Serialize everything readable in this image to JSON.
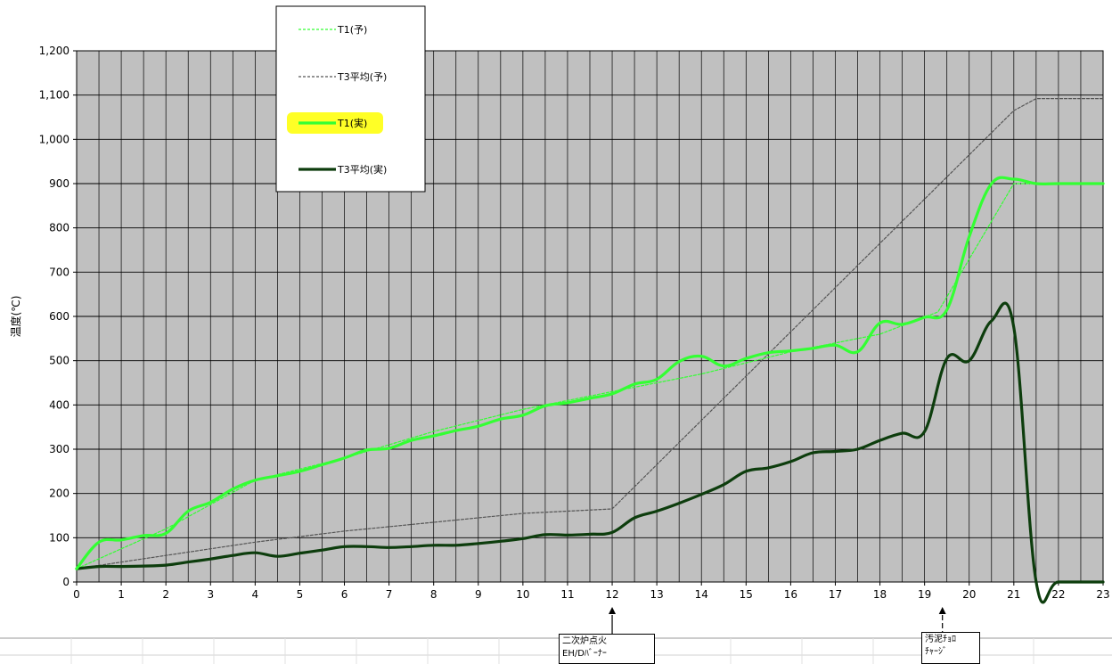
{
  "chart_data": {
    "type": "line",
    "title": "",
    "xlabel": "",
    "ylabel": "温度(℃)",
    "xlim": [
      0,
      23
    ],
    "ylim": [
      0,
      1200
    ],
    "x_ticks": [
      "0",
      "1",
      "2",
      "3",
      "4",
      "5",
      "6",
      "7",
      "8",
      "9",
      "10",
      "11",
      "12",
      "13",
      "14",
      "15",
      "16",
      "17",
      "18",
      "19",
      "20",
      "21",
      "22",
      "23"
    ],
    "y_ticks": [
      "0",
      "100",
      "200",
      "300",
      "400",
      "500",
      "600",
      "700",
      "800",
      "900",
      "1,000",
      "1,100",
      "1,200"
    ],
    "grid": true,
    "background": "#c0c0c0",
    "legend_position": "top-left",
    "series": [
      {
        "name": "T1(予)",
        "color": "#33ff33",
        "style": "dashed-thin",
        "points": [
          [
            0,
            30
          ],
          [
            2,
            120
          ],
          [
            4,
            230
          ],
          [
            6,
            280
          ],
          [
            8,
            340
          ],
          [
            10,
            390
          ],
          [
            12,
            430
          ],
          [
            14,
            470
          ],
          [
            16,
            520
          ],
          [
            18,
            560
          ],
          [
            19.3,
            610
          ],
          [
            21,
            900
          ],
          [
            23,
            900
          ]
        ]
      },
      {
        "name": "T3平均(予)",
        "color": "#555555",
        "style": "dashed-thin",
        "points": [
          [
            0,
            30
          ],
          [
            2,
            60
          ],
          [
            4,
            90
          ],
          [
            6,
            115
          ],
          [
            8,
            135
          ],
          [
            10,
            155
          ],
          [
            12,
            165
          ],
          [
            21,
            1065
          ],
          [
            21.5,
            1092
          ],
          [
            23,
            1092
          ]
        ]
      },
      {
        "name": "T1(実)",
        "color": "#33ff33",
        "style": "solid-thick",
        "highlight": "#ffff00",
        "points": [
          [
            0,
            30
          ],
          [
            0.5,
            90
          ],
          [
            1,
            95
          ],
          [
            1.5,
            105
          ],
          [
            2,
            110
          ],
          [
            2.5,
            160
          ],
          [
            3,
            180
          ],
          [
            3.5,
            210
          ],
          [
            4,
            230
          ],
          [
            4.5,
            240
          ],
          [
            5,
            250
          ],
          [
            5.5,
            265
          ],
          [
            6,
            280
          ],
          [
            6.5,
            298
          ],
          [
            7,
            302
          ],
          [
            7.5,
            320
          ],
          [
            8,
            330
          ],
          [
            8.5,
            342
          ],
          [
            9,
            352
          ],
          [
            9.5,
            368
          ],
          [
            10,
            377
          ],
          [
            10.5,
            398
          ],
          [
            11,
            405
          ],
          [
            11.5,
            415
          ],
          [
            12,
            425
          ],
          [
            12.5,
            447
          ],
          [
            13,
            458
          ],
          [
            13.5,
            498
          ],
          [
            14,
            510
          ],
          [
            14.5,
            488
          ],
          [
            15,
            505
          ],
          [
            15.5,
            518
          ],
          [
            16,
            522
          ],
          [
            16.5,
            528
          ],
          [
            17,
            535
          ],
          [
            17.5,
            520
          ],
          [
            18,
            585
          ],
          [
            18.5,
            582
          ],
          [
            19,
            598
          ],
          [
            19.5,
            615
          ],
          [
            20,
            780
          ],
          [
            20.5,
            900
          ],
          [
            21,
            910
          ],
          [
            21.5,
            900
          ],
          [
            22,
            900
          ],
          [
            23,
            900
          ]
        ]
      },
      {
        "name": "T3平均(実)",
        "color": "#0d3d0d",
        "style": "solid-thick",
        "points": [
          [
            0,
            30
          ],
          [
            0.5,
            35
          ],
          [
            1,
            35
          ],
          [
            1.5,
            36
          ],
          [
            2,
            38
          ],
          [
            2.5,
            45
          ],
          [
            3,
            52
          ],
          [
            3.5,
            60
          ],
          [
            4,
            66
          ],
          [
            4.5,
            58
          ],
          [
            5,
            65
          ],
          [
            5.5,
            72
          ],
          [
            6,
            80
          ],
          [
            6.5,
            80
          ],
          [
            7,
            78
          ],
          [
            7.5,
            80
          ],
          [
            8,
            83
          ],
          [
            8.5,
            83
          ],
          [
            9,
            87
          ],
          [
            9.5,
            92
          ],
          [
            10,
            98
          ],
          [
            10.5,
            107
          ],
          [
            11,
            106
          ],
          [
            11.5,
            108
          ],
          [
            12,
            112
          ],
          [
            12.5,
            145
          ],
          [
            13,
            160
          ],
          [
            13.5,
            178
          ],
          [
            14,
            198
          ],
          [
            14.5,
            220
          ],
          [
            15,
            250
          ],
          [
            15.5,
            258
          ],
          [
            16,
            272
          ],
          [
            16.5,
            292
          ],
          [
            17,
            295
          ],
          [
            17.5,
            300
          ],
          [
            18,
            320
          ],
          [
            18.5,
            336
          ],
          [
            19,
            340
          ],
          [
            19.5,
            505
          ],
          [
            20,
            500
          ],
          [
            20.5,
            590
          ],
          [
            21,
            575
          ],
          [
            21.5,
            0
          ],
          [
            22,
            0
          ],
          [
            23,
            0
          ]
        ]
      }
    ],
    "annotations": [
      {
        "x": 12,
        "lines": [
          "二次炉点火",
          "EH/Dﾊﾞｰﾅｰ"
        ]
      },
      {
        "x": 19.4,
        "lines": [
          "汚泥ﾁｮﾛ",
          "ﾁｬｰｼﾞ"
        ]
      }
    ]
  }
}
